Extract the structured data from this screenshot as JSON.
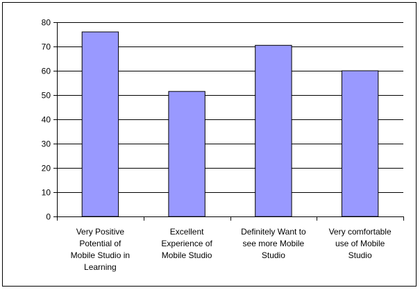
{
  "chart_data": {
    "type": "bar",
    "categories": [
      "Very Positive Potential of Mobile Studio in Learning",
      "Excellent Experience of Mobile Studio",
      "Definitely Want to see more Mobile Studio",
      "Very comfortable use of Mobile Studio"
    ],
    "category_lines": [
      [
        "Very Positive",
        "Potential of",
        "Mobile Studio in",
        "Learning"
      ],
      [
        "Excellent",
        "Experience of",
        "Mobile Studio"
      ],
      [
        "Definitely Want to",
        "see more Mobile",
        "Studio"
      ],
      [
        "Very comfortable",
        "use of Mobile",
        "Studio"
      ]
    ],
    "values": [
      76,
      51.5,
      70.5,
      60
    ],
    "title": "",
    "xlabel": "",
    "ylabel": "",
    "ylim": [
      0,
      80
    ],
    "yticks": [
      0,
      10,
      20,
      30,
      40,
      50,
      60,
      70,
      80
    ],
    "grid": true,
    "legend": "none",
    "bar_color": "#9999ff",
    "bar_edge_color": "#000000",
    "grid_color": "#000000"
  }
}
